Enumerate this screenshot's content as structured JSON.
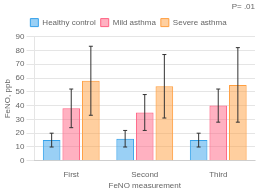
{
  "chart_data": {
    "type": "bar",
    "xlabel": "FeNO measurement",
    "ylabel": "FeNO, ppb",
    "categories": [
      "First",
      "Second",
      "Third"
    ],
    "series": [
      {
        "name": "Healthy control",
        "values": [
          15,
          16,
          15
        ],
        "errors": [
          5,
          6,
          5
        ]
      },
      {
        "name": "Mild asthma",
        "values": [
          38,
          35,
          40
        ],
        "errors": [
          14,
          13,
          12
        ]
      },
      {
        "name": "Severe asthma",
        "values": [
          58,
          54,
          55
        ],
        "errors": [
          25,
          23,
          27
        ]
      }
    ],
    "ylim": [
      0,
      90
    ],
    "yticks": [
      0,
      10,
      20,
      30,
      40,
      50,
      60,
      70,
      80,
      90
    ],
    "grid": true,
    "legend": "top",
    "annotation": "P= .01"
  }
}
